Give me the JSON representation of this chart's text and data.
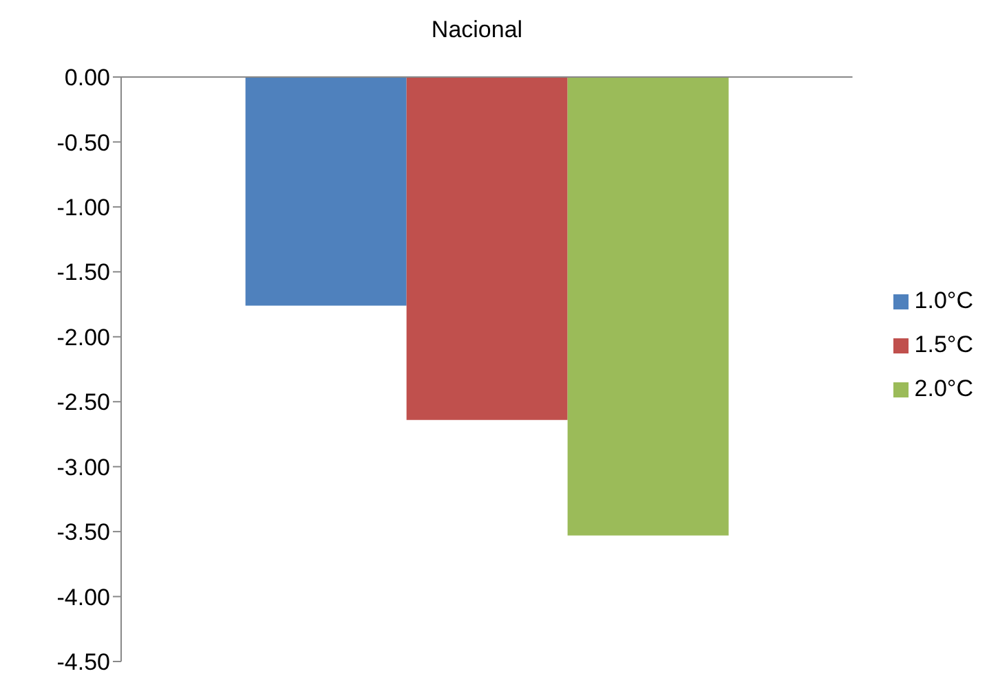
{
  "chart_data": {
    "type": "bar",
    "title": "Nacional",
    "categories": [
      null
    ],
    "series": [
      {
        "name": "1.0°C",
        "color": "#4f81bd",
        "values": [
          -1.76
        ]
      },
      {
        "name": "1.5°C",
        "color": "#c0504d",
        "values": [
          -2.64
        ]
      },
      {
        "name": "2.0°C",
        "color": "#9bbb59",
        "values": [
          -3.53
        ]
      }
    ],
    "ylim": [
      -4.5,
      0
    ],
    "yticks": [
      {
        "value": 0,
        "label": "0.00"
      },
      {
        "value": -0.5,
        "label": "-0.50"
      },
      {
        "value": -1,
        "label": "-1.00"
      },
      {
        "value": -1.5,
        "label": "-1.50"
      },
      {
        "value": -2,
        "label": "-2.00"
      },
      {
        "value": -2.5,
        "label": "-2.50"
      },
      {
        "value": -3,
        "label": "-3.00"
      },
      {
        "value": -3.5,
        "label": "-3.50"
      },
      {
        "value": -4,
        "label": "-4.00"
      },
      {
        "value": -4.5,
        "label": "-4.50"
      }
    ],
    "grid": false,
    "legend": "right"
  }
}
